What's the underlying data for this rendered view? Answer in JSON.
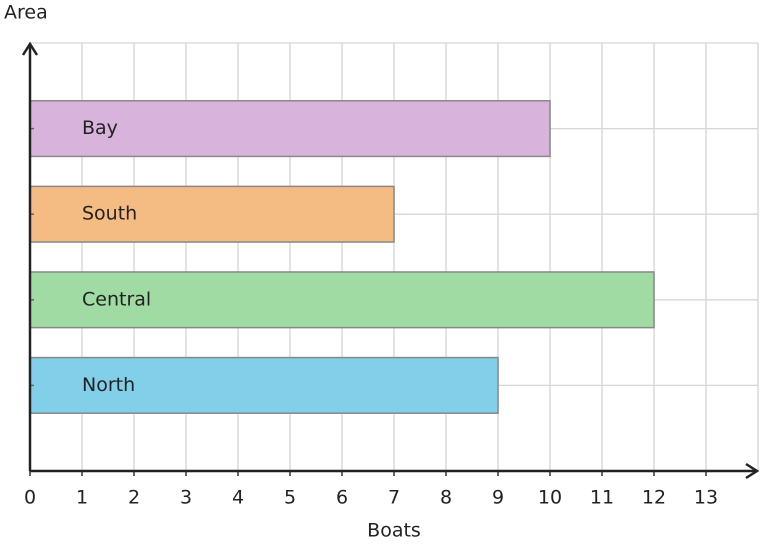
{
  "chart_data": {
    "type": "bar",
    "orientation": "horizontal",
    "x_label": "Boats",
    "y_label": "Area",
    "categories": [
      "North",
      "Central",
      "South",
      "Bay"
    ],
    "values": [
      9,
      12,
      7,
      10
    ],
    "colors": [
      "#82cfe9",
      "#9fdba3",
      "#f4bb83",
      "#d8b4dd"
    ],
    "xlim": [
      0,
      14
    ],
    "xticks": [
      0,
      1,
      2,
      3,
      4,
      5,
      6,
      7,
      8,
      9,
      10,
      11,
      12,
      13
    ],
    "grid": true
  }
}
